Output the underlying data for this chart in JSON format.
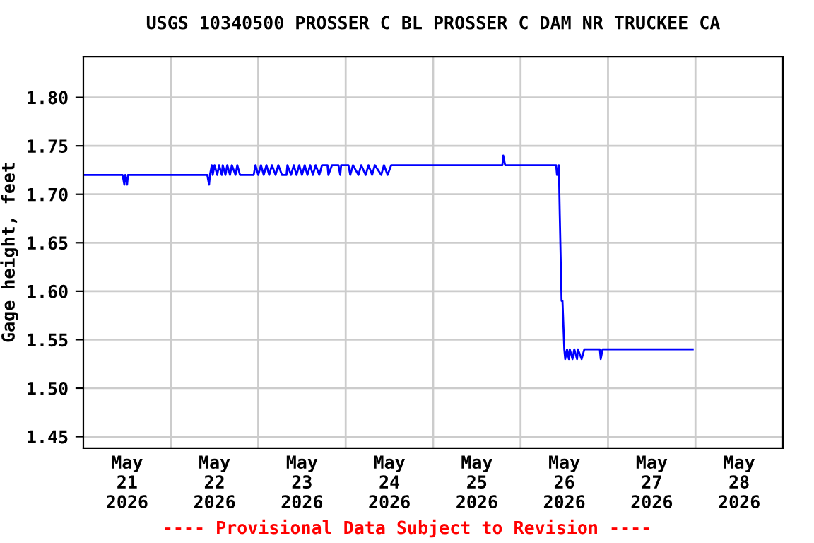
{
  "chart_data": {
    "type": "line",
    "title": "USGS 10340500 PROSSER C BL PROSSER C DAM NR TRUCKEE CA",
    "ylabel": "Gage height, feet",
    "annotations": [
      "---- Provisional Data Subject to Revision ----"
    ],
    "grid": true,
    "legend": false,
    "marker": "none",
    "line_style": "solid",
    "xlim": [
      "2026-05-21",
      "2026-05-29"
    ],
    "xticks": [
      {
        "value": "2026-05-21T12:00",
        "label": "May\n21\n2026"
      },
      {
        "value": "2026-05-22T12:00",
        "label": "May\n22\n2026"
      },
      {
        "value": "2026-05-23T12:00",
        "label": "May\n23\n2026"
      },
      {
        "value": "2026-05-24T12:00",
        "label": "May\n24\n2026"
      },
      {
        "value": "2026-05-25T12:00",
        "label": "May\n25\n2026"
      },
      {
        "value": "2026-05-26T12:00",
        "label": "May\n26\n2026"
      },
      {
        "value": "2026-05-27T12:00",
        "label": "May\n27\n2026"
      },
      {
        "value": "2026-05-28T12:00",
        "label": "May\n28\n2026"
      },
      {
        "value": "2026-05-22",
        "label": null
      },
      {
        "value": "2026-05-23",
        "label": null
      },
      {
        "value": "2026-05-24",
        "label": null
      },
      {
        "value": "2026-05-25",
        "label": null
      },
      {
        "value": "2026-05-26",
        "label": null
      },
      {
        "value": "2026-05-27",
        "label": null
      },
      {
        "value": "2026-05-28",
        "label": null
      }
    ],
    "ylim": [
      1.438,
      1.842
    ],
    "yticks": [
      {
        "value": 1.45,
        "label": "1.45"
      },
      {
        "value": 1.5,
        "label": "1.50"
      },
      {
        "value": 1.55,
        "label": "1.55"
      },
      {
        "value": 1.6,
        "label": "1.60"
      },
      {
        "value": 1.65,
        "label": "1.65"
      },
      {
        "value": 1.7,
        "label": "1.70"
      },
      {
        "value": 1.75,
        "label": "1.75"
      },
      {
        "value": 1.8,
        "label": "1.80"
      }
    ],
    "series": [
      {
        "color": "#0000ff",
        "x": [
          "2026-05-21T00:00",
          "2026-05-21T10:45",
          "2026-05-21T11:15",
          "2026-05-21T11:30",
          "2026-05-21T12:00",
          "2026-05-21T12:15",
          "2026-05-22T10:00",
          "2026-05-22T10:30",
          "2026-05-22T10:45",
          "2026-05-22T11:15",
          "2026-05-22T11:30",
          "2026-05-22T12:00",
          "2026-05-22T12:45",
          "2026-05-22T13:15",
          "2026-05-22T14:00",
          "2026-05-22T14:15",
          "2026-05-22T15:00",
          "2026-05-22T15:30",
          "2026-05-22T16:15",
          "2026-05-22T16:45",
          "2026-05-22T17:45",
          "2026-05-22T18:15",
          "2026-05-22T19:00",
          "2026-05-22T22:45",
          "2026-05-22T23:15",
          "2026-05-23T00:00",
          "2026-05-23T00:45",
          "2026-05-23T01:30",
          "2026-05-23T02:15",
          "2026-05-23T03:00",
          "2026-05-23T03:45",
          "2026-05-23T04:45",
          "2026-05-23T05:30",
          "2026-05-23T06:30",
          "2026-05-23T07:45",
          "2026-05-23T08:00",
          "2026-05-23T09:00",
          "2026-05-23T09:45",
          "2026-05-23T10:30",
          "2026-05-23T11:15",
          "2026-05-23T12:00",
          "2026-05-23T12:45",
          "2026-05-23T13:30",
          "2026-05-23T14:15",
          "2026-05-23T15:00",
          "2026-05-23T15:45",
          "2026-05-23T16:45",
          "2026-05-23T17:30",
          "2026-05-23T19:00",
          "2026-05-23T19:15",
          "2026-05-23T20:15",
          "2026-05-23T22:00",
          "2026-05-23T22:30",
          "2026-05-23T22:45",
          "2026-05-24T00:45",
          "2026-05-24T01:15",
          "2026-05-24T02:00",
          "2026-05-24T03:30",
          "2026-05-24T04:15",
          "2026-05-24T05:30",
          "2026-05-24T06:15",
          "2026-05-24T07:15",
          "2026-05-24T08:00",
          "2026-05-24T09:45",
          "2026-05-24T10:30",
          "2026-05-24T11:30",
          "2026-05-24T12:30",
          "2026-05-25T19:00",
          "2026-05-25T19:15",
          "2026-05-25T19:45",
          "2026-05-26T09:45",
          "2026-05-26T10:00",
          "2026-05-26T10:30",
          "2026-05-26T10:45",
          "2026-05-26T11:15",
          "2026-05-26T11:30",
          "2026-05-26T12:00",
          "2026-05-26T12:15",
          "2026-05-26T12:45",
          "2026-05-26T13:15",
          "2026-05-26T13:30",
          "2026-05-26T14:15",
          "2026-05-26T14:45",
          "2026-05-26T15:30",
          "2026-05-26T15:45",
          "2026-05-26T16:45",
          "2026-05-26T17:30",
          "2026-05-26T21:45",
          "2026-05-26T22:00",
          "2026-05-26T22:30",
          "2026-05-27T23:15"
        ],
        "values": [
          1.72,
          1.72,
          1.71,
          1.72,
          1.71,
          1.72,
          1.72,
          1.71,
          1.72,
          1.73,
          1.72,
          1.73,
          1.72,
          1.73,
          1.72,
          1.73,
          1.72,
          1.73,
          1.72,
          1.73,
          1.72,
          1.73,
          1.72,
          1.72,
          1.73,
          1.72,
          1.73,
          1.72,
          1.73,
          1.72,
          1.73,
          1.72,
          1.73,
          1.72,
          1.72,
          1.73,
          1.72,
          1.73,
          1.72,
          1.73,
          1.72,
          1.73,
          1.72,
          1.73,
          1.72,
          1.73,
          1.72,
          1.73,
          1.73,
          1.72,
          1.73,
          1.73,
          1.72,
          1.73,
          1.73,
          1.72,
          1.73,
          1.72,
          1.73,
          1.72,
          1.73,
          1.72,
          1.73,
          1.72,
          1.73,
          1.72,
          1.73,
          1.73,
          1.74,
          1.73,
          1.73,
          1.72,
          1.73,
          1.68,
          1.59,
          1.59,
          1.54,
          1.53,
          1.54,
          1.53,
          1.54,
          1.53,
          1.54,
          1.53,
          1.54,
          1.53,
          1.54,
          1.54,
          1.53,
          1.54,
          1.54
        ]
      }
    ]
  }
}
